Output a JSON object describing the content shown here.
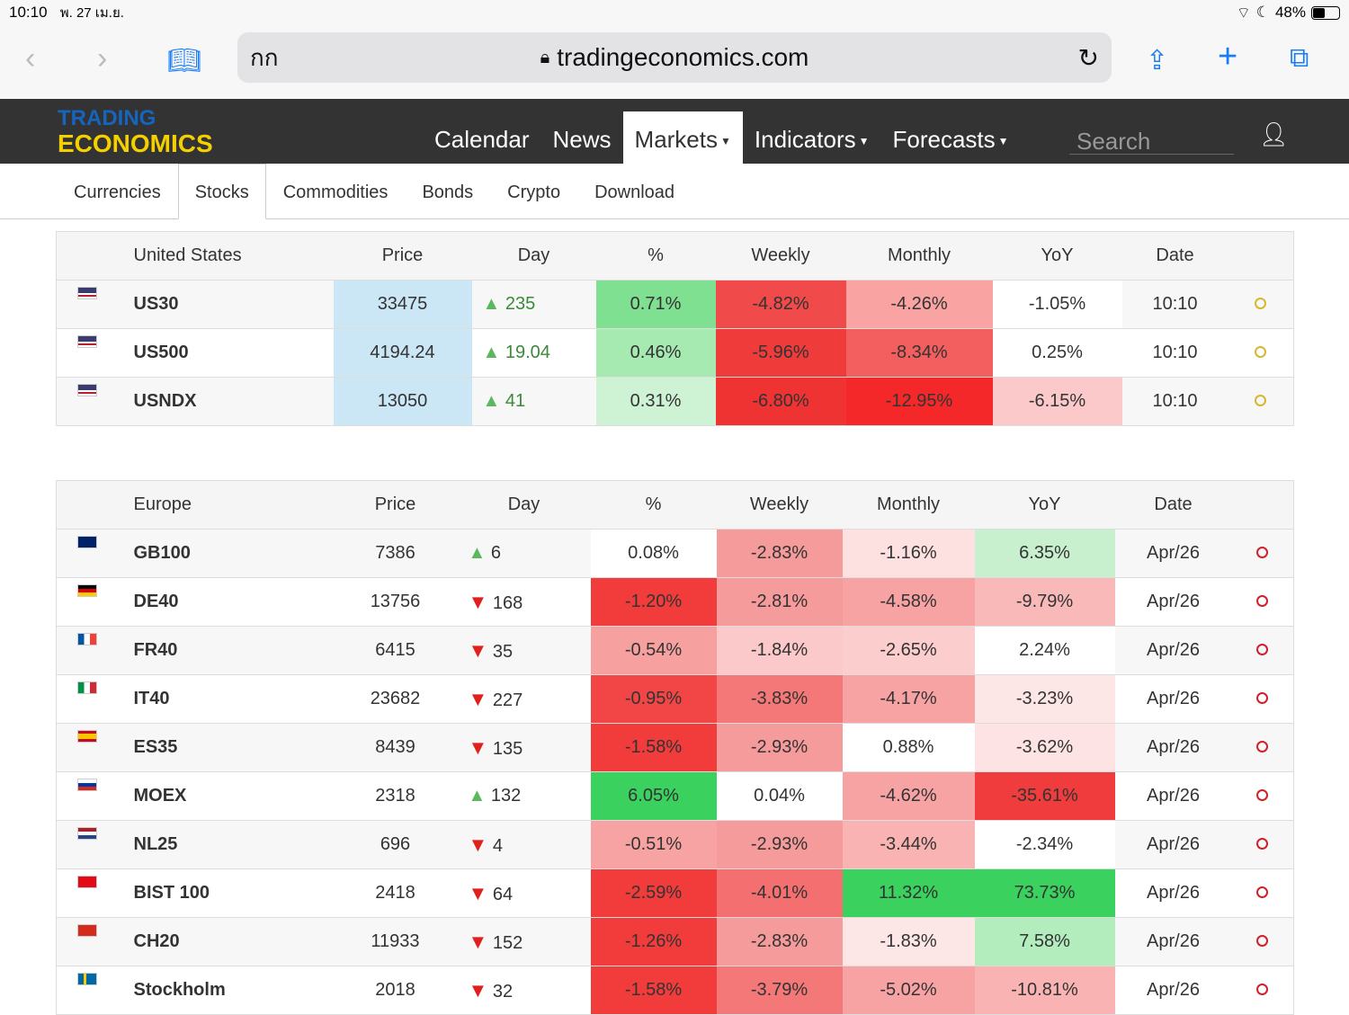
{
  "status": {
    "time": "10:10",
    "date": "พ. 27 เม.ย.",
    "battery": "48%",
    "battery_level": 0.48
  },
  "browser": {
    "reader": "กก",
    "url": "tradingeconomics.com"
  },
  "site": {
    "logo_top": "TRADING",
    "logo_bottom": "ECONOMICS",
    "nav": [
      {
        "label": "Calendar",
        "caret": false
      },
      {
        "label": "News",
        "caret": false
      },
      {
        "label": "Markets",
        "caret": true,
        "active": true
      },
      {
        "label": "Indicators",
        "caret": true
      },
      {
        "label": "Forecasts",
        "caret": true
      }
    ],
    "search_placeholder": "Search",
    "subnav": [
      "Currencies",
      "Stocks",
      "Commodities",
      "Bonds",
      "Crypto",
      "Download"
    ],
    "subnav_active": 1
  },
  "us": {
    "headers": [
      "United States",
      "Price",
      "Day",
      "%",
      "Weekly",
      "Monthly",
      "YoY",
      "Date"
    ],
    "rows": [
      {
        "flag": "us",
        "name": "US30",
        "price": "33475",
        "dir": "up",
        "day": "235",
        "pct": "0.71%",
        "weekly": "-4.82%",
        "monthly": "-4.26%",
        "yoy": "-1.05%",
        "date": "10:10",
        "colors": [
          "#7fe091",
          "#f04a4a",
          "#f9a3a3",
          "#ffffff"
        ]
      },
      {
        "flag": "us",
        "name": "US500",
        "price": "4194.24",
        "dir": "up",
        "day": "19.04",
        "pct": "0.46%",
        "weekly": "-5.96%",
        "monthly": "-8.34%",
        "yoy": "0.25%",
        "date": "10:10",
        "colors": [
          "#a6eab2",
          "#f03b3b",
          "#f35e5e",
          "#ffffff"
        ]
      },
      {
        "flag": "us",
        "name": "USNDX",
        "price": "13050",
        "dir": "up",
        "day": "41",
        "pct": "0.31%",
        "weekly": "-6.80%",
        "monthly": "-12.95%",
        "yoy": "-6.15%",
        "date": "10:10",
        "colors": [
          "#cdf3d4",
          "#ef3232",
          "#f42828",
          "#fbc9c9"
        ]
      }
    ]
  },
  "europe": {
    "headers": [
      "Europe",
      "Price",
      "Day",
      "%",
      "Weekly",
      "Monthly",
      "YoY",
      "Date"
    ],
    "rows": [
      {
        "flag": "gb",
        "name": "GB100",
        "price": "7386",
        "dir": "up",
        "day": "6",
        "pct": "0.08%",
        "weekly": "-2.83%",
        "monthly": "-1.16%",
        "yoy": "6.35%",
        "date": "Apr/26",
        "colors": [
          "#ffffff",
          "#f69b9b",
          "#fde0e0",
          "#c8f0cf"
        ]
      },
      {
        "flag": "de",
        "name": "DE40",
        "price": "13756",
        "dir": "down",
        "day": "168",
        "pct": "-1.20%",
        "weekly": "-2.81%",
        "monthly": "-4.58%",
        "yoy": "-9.79%",
        "date": "Apr/26",
        "colors": [
          "#f23c3c",
          "#f69b9b",
          "#f7a3a3",
          "#f9b9b9"
        ]
      },
      {
        "flag": "fr",
        "name": "FR40",
        "price": "6415",
        "dir": "down",
        "day": "35",
        "pct": "-0.54%",
        "weekly": "-1.84%",
        "monthly": "-2.65%",
        "yoy": "2.24%",
        "date": "Apr/26",
        "colors": [
          "#f7a0a0",
          "#fbc9c9",
          "#fbcdcd",
          "#ffffff"
        ]
      },
      {
        "flag": "it",
        "name": "IT40",
        "price": "23682",
        "dir": "down",
        "day": "227",
        "pct": "-0.95%",
        "weekly": "-3.83%",
        "monthly": "-4.17%",
        "yoy": "-3.23%",
        "date": "Apr/26",
        "colors": [
          "#f24646",
          "#f57878",
          "#f7a3a3",
          "#fde6e6"
        ]
      },
      {
        "flag": "es",
        "name": "ES35",
        "price": "8439",
        "dir": "down",
        "day": "135",
        "pct": "-1.58%",
        "weekly": "-2.93%",
        "monthly": "0.88%",
        "yoy": "-3.62%",
        "date": "Apr/26",
        "colors": [
          "#f23c3c",
          "#f69b9b",
          "#ffffff",
          "#fde3e3"
        ]
      },
      {
        "flag": "ru",
        "name": "MOEX",
        "price": "2318",
        "dir": "up",
        "day": "132",
        "pct": "6.05%",
        "weekly": "0.04%",
        "monthly": "-4.62%",
        "yoy": "-35.61%",
        "date": "Apr/26",
        "colors": [
          "#3bd15e",
          "#ffffff",
          "#f7a3a3",
          "#f03c3c"
        ]
      },
      {
        "flag": "nl",
        "name": "NL25",
        "price": "696",
        "dir": "down",
        "day": "4",
        "pct": "-0.51%",
        "weekly": "-2.93%",
        "monthly": "-3.44%",
        "yoy": "-2.34%",
        "date": "Apr/26",
        "colors": [
          "#f7a3a3",
          "#f69b9b",
          "#f9b3b3",
          "#ffffff"
        ]
      },
      {
        "flag": "tr",
        "name": "BIST 100",
        "price": "2418",
        "dir": "down",
        "day": "64",
        "pct": "-2.59%",
        "weekly": "-4.01%",
        "monthly": "11.32%",
        "yoy": "73.73%",
        "date": "Apr/26",
        "colors": [
          "#f23c3c",
          "#f47070",
          "#3bd15e",
          "#3bd15e"
        ]
      },
      {
        "flag": "ch",
        "name": "CH20",
        "price": "11933",
        "dir": "down",
        "day": "152",
        "pct": "-1.26%",
        "weekly": "-2.83%",
        "monthly": "-1.83%",
        "yoy": "7.58%",
        "date": "Apr/26",
        "colors": [
          "#f23c3c",
          "#f69b9b",
          "#fde6e6",
          "#b3edbd"
        ]
      },
      {
        "flag": "se",
        "name": "Stockholm",
        "price": "2018",
        "dir": "down",
        "day": "32",
        "pct": "-1.58%",
        "weekly": "-3.79%",
        "monthly": "-5.02%",
        "yoy": "-10.81%",
        "date": "Apr/26",
        "colors": [
          "#f23c3c",
          "#f57878",
          "#f7a3a3",
          "#f9b3b3"
        ]
      }
    ]
  }
}
